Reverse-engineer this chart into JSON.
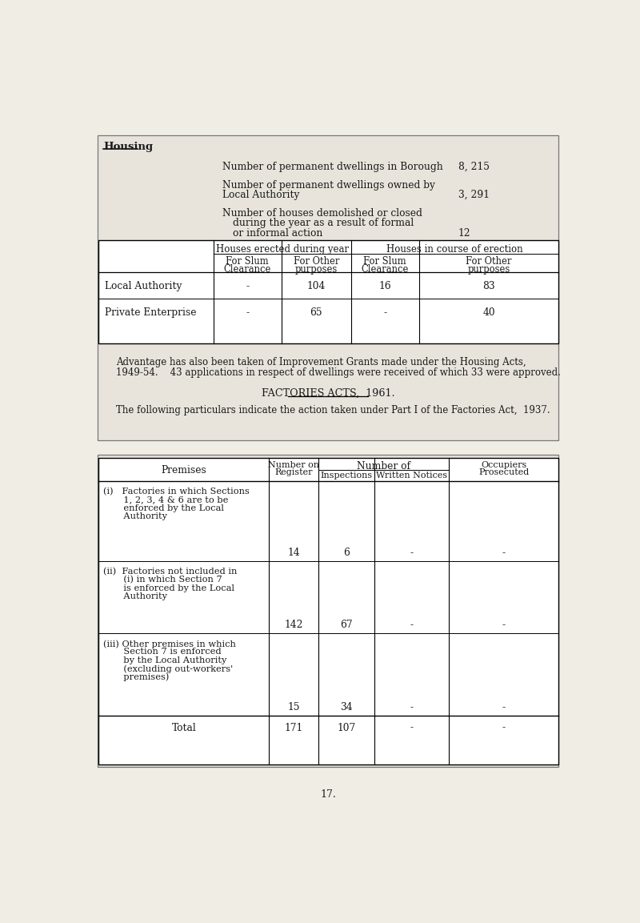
{
  "bg_color": "#e8e4dc",
  "page_bg": "#f0ede4",
  "title": "Housing",
  "stat1_label": "Number of permanent dwellings in Borough",
  "stat1_value": "8, 215",
  "stat2_label1": "Number of permanent dwellings owned by",
  "stat2_label2": "Local Authority",
  "stat2_value": "3, 291",
  "stat3_label1": "Number of houses demolished or closed",
  "stat3_label2": "during the year as a result of formal",
  "stat3_label3": "or informal action",
  "stat3_value": "12",
  "table1_col_headers": [
    "Houses erected during year",
    "Houses in course of erection"
  ],
  "table1_sub_headers": [
    "For Slum\nClearance",
    "For Other\npurposes",
    "For Slum\nClearance",
    "For Other\npurposes"
  ],
  "table1_rows": [
    [
      "Local Authority",
      "-",
      "104",
      "16",
      "83"
    ],
    [
      "Private Enterprise",
      "-",
      "65",
      "-",
      "40"
    ]
  ],
  "improvement_text1": "Advantage has also been taken of Improvement Grants made under the Housing Acts,",
  "improvement_text2": "1949-54.    43 applications in respect of dwellings were received of which 33 were approved.",
  "factories_title": "FACTORIES ACTS,  1961.",
  "factories_subtitle": "The following particulars indicate the action taken under Part I of the Factories Act,  1937.",
  "page_number": "17."
}
